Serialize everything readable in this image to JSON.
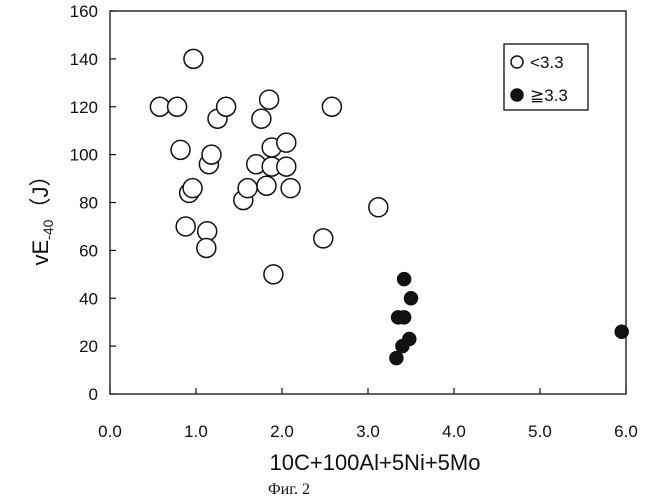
{
  "chart_data": {
    "type": "scatter",
    "xlabel": "10C+100Al+5Ni+5Mo",
    "ylabel": "vE-40 (J)",
    "xlim": [
      0,
      6
    ],
    "ylim": [
      0,
      160
    ],
    "xticks": [
      "0.0",
      "1.0",
      "2.0",
      "3.0",
      "4.0",
      "5.0",
      "6.0"
    ],
    "yticks": [
      "0",
      "20",
      "40",
      "60",
      "80",
      "100",
      "120",
      "140",
      "160"
    ],
    "grid": false,
    "legend_position": "top-right",
    "series": [
      {
        "name": "<3.3",
        "marker": "open-circle",
        "points": [
          [
            0.58,
            120
          ],
          [
            0.78,
            120
          ],
          [
            0.97,
            140
          ],
          [
            0.82,
            102
          ],
          [
            0.92,
            84
          ],
          [
            0.96,
            86
          ],
          [
            0.88,
            70
          ],
          [
            1.13,
            68
          ],
          [
            1.12,
            61
          ],
          [
            1.15,
            96
          ],
          [
            1.18,
            100
          ],
          [
            1.25,
            115
          ],
          [
            1.35,
            120
          ],
          [
            1.55,
            81
          ],
          [
            1.6,
            86
          ],
          [
            1.7,
            96
          ],
          [
            1.76,
            115
          ],
          [
            1.82,
            87
          ],
          [
            1.85,
            123
          ],
          [
            1.88,
            95
          ],
          [
            1.88,
            103
          ],
          [
            1.9,
            50
          ],
          [
            2.05,
            95
          ],
          [
            2.05,
            105
          ],
          [
            2.1,
            86
          ],
          [
            2.48,
            65
          ],
          [
            2.58,
            120
          ],
          [
            3.12,
            78
          ]
        ]
      },
      {
        "name": "≧3.3",
        "marker": "filled-circle",
        "points": [
          [
            3.33,
            15
          ],
          [
            3.35,
            32
          ],
          [
            3.4,
            20
          ],
          [
            3.42,
            32
          ],
          [
            3.42,
            48
          ],
          [
            3.48,
            23
          ],
          [
            3.5,
            40
          ],
          [
            5.95,
            26
          ]
        ]
      }
    ]
  },
  "ylabel_parts": {
    "main": "vE",
    "sub": "-40",
    "unit": "（J）"
  },
  "legend": {
    "items": [
      {
        "symbol": "open-circle",
        "prefix": "<",
        "value": "3.3"
      },
      {
        "symbol": "filled-circle",
        "prefix": "≧",
        "value": "3.3"
      }
    ]
  },
  "caption": "Фиг. 2"
}
